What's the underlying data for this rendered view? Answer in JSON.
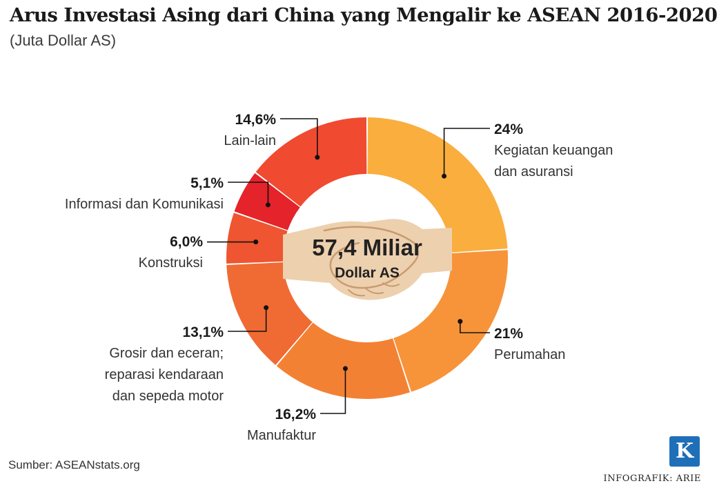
{
  "title": "Arus Investasi Asing dari China yang Mengalir ke ASEAN 2016-2020",
  "subtitle": "(Juta Dollar AS)",
  "source": "Sumber: ASEANstats.org",
  "logo_letter": "K",
  "credit": "INFOGRAFIK: ARIE",
  "center": {
    "value": "57,4 Miliar",
    "unit": "Dollar AS"
  },
  "chart_data": {
    "type": "pie",
    "style": "donut",
    "title": "Arus Investasi Asing dari China yang Mengalir ke ASEAN 2016-2020",
    "subtitle": "(Juta Dollar AS)",
    "total_label": "57,4 Miliar Dollar AS",
    "slices": [
      {
        "label": "Kegiatan keuangan dan asuransi",
        "label_lines": [
          "Kegiatan keuangan",
          "dan asuransi"
        ],
        "value": 24.0,
        "display": "24%",
        "color": "#F9AE3E",
        "side": "right"
      },
      {
        "label": "Perumahan",
        "label_lines": [
          "Perumahan"
        ],
        "value": 21.0,
        "display": "21%",
        "color": "#F7943A",
        "side": "right"
      },
      {
        "label": "Manufaktur",
        "label_lines": [
          "Manufaktur"
        ],
        "value": 16.2,
        "display": "16,2%",
        "color": "#F38134",
        "side": "left"
      },
      {
        "label": "Grosir dan eceran; reparasi kendaraan dan sepeda motor",
        "label_lines": [
          "Grosir dan eceran;",
          "reparasi kendaraan",
          "dan sepeda motor"
        ],
        "value": 13.1,
        "display": "13,1%",
        "color": "#F06A33",
        "side": "left"
      },
      {
        "label": "Konstruksi",
        "label_lines": [
          "Konstruksi"
        ],
        "value": 6.0,
        "display": "6,0%",
        "color": "#EE5530",
        "side": "left"
      },
      {
        "label": "Informasi dan Komunikasi",
        "label_lines": [
          "Informasi dan Komunikasi"
        ],
        "value": 5.1,
        "display": "5,1%",
        "color": "#E5232A",
        "side": "left"
      },
      {
        "label": "Lain-lain",
        "label_lines": [
          "Lain-lain"
        ],
        "value": 14.6,
        "display": "14,6%",
        "color": "#F04A30",
        "side": "left"
      }
    ]
  }
}
